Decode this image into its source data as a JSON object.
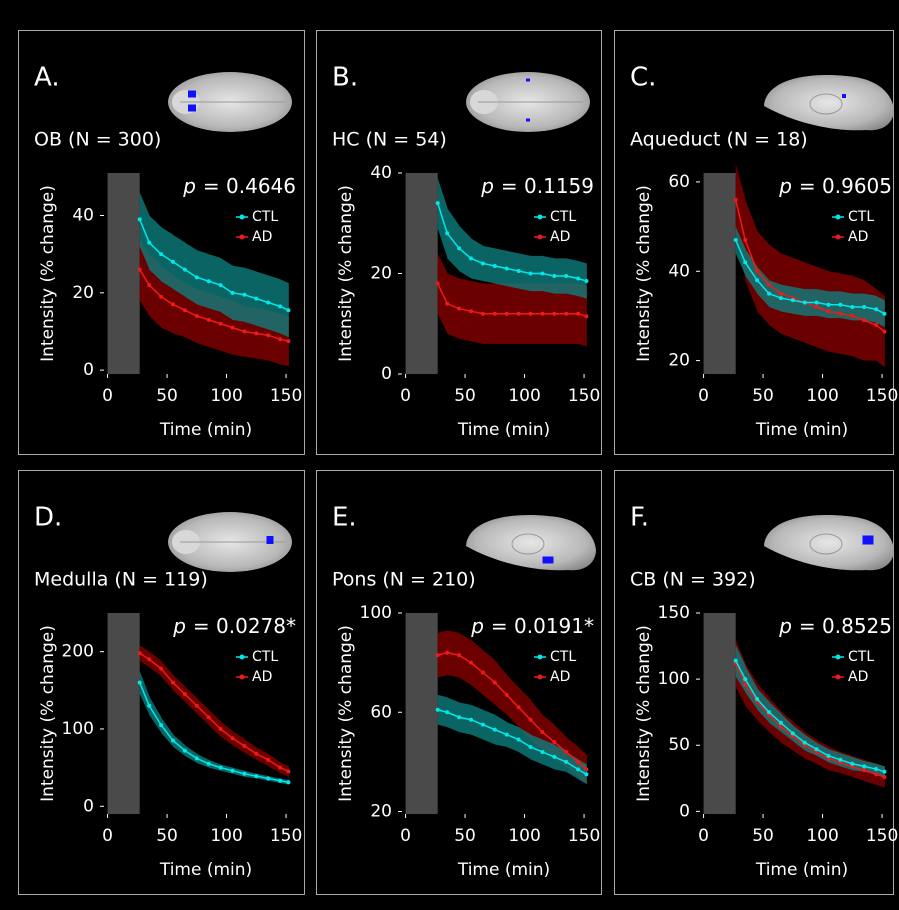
{
  "chart_data": [
    {
      "type": "line",
      "panel_label": "A.",
      "title": "OB (N = 300)",
      "p_symbol": "p",
      "p_value": "= 0.4646",
      "xlabel": "Time (min)",
      "ylabel": "Intensity (% change)",
      "xlim": [
        -3,
        155
      ],
      "ylim": [
        -1,
        51
      ],
      "xticks": [
        0,
        50,
        100,
        150
      ],
      "yticks": [
        0,
        20,
        40
      ],
      "shaded_region": [
        0,
        27
      ],
      "x": [
        27,
        35,
        45,
        55,
        65,
        75,
        85,
        95,
        105,
        115,
        125,
        135,
        145,
        152
      ],
      "series": [
        {
          "name": "CTL",
          "color": "#00e8e8",
          "band_color": "#0e8080",
          "values": [
            39,
            33,
            30,
            28,
            26,
            24,
            23,
            22,
            20,
            19.5,
            18.5,
            17.5,
            16.5,
            15.5
          ],
          "errors": [
            7,
            7,
            7,
            7,
            7,
            7,
            7,
            7,
            7,
            7,
            7,
            7,
            7,
            7
          ]
        },
        {
          "name": "AD",
          "color": "#ee1a1a",
          "band_color": "#8a0000",
          "values": [
            26,
            22,
            19,
            17,
            15.5,
            14,
            13,
            12,
            11,
            10,
            9.5,
            9,
            8,
            7.5
          ],
          "errors": [
            8,
            8,
            8,
            7.5,
            7,
            7,
            7,
            7,
            7,
            6.5,
            6.5,
            6.5,
            6.5,
            6.5
          ]
        }
      ]
    },
    {
      "type": "line",
      "panel_label": "B.",
      "title": "HC (N = 54)",
      "p_symbol": "p",
      "p_value": "= 0.1159",
      "xlabel": "Time (min)",
      "ylabel": "Intensity (% change)",
      "xlim": [
        -3,
        155
      ],
      "ylim": [
        0,
        40
      ],
      "xticks": [
        0,
        50,
        100,
        150
      ],
      "yticks": [
        0,
        20,
        40
      ],
      "shaded_region": [
        0,
        27
      ],
      "x": [
        27,
        35,
        45,
        55,
        65,
        75,
        85,
        95,
        105,
        115,
        125,
        135,
        145,
        152
      ],
      "series": [
        {
          "name": "CTL",
          "color": "#00e8e8",
          "band_color": "#0e8080",
          "values": [
            34,
            28,
            25,
            23,
            22,
            21.5,
            21,
            20.5,
            20,
            20,
            19.5,
            19.5,
            19,
            18.5
          ],
          "errors": [
            5,
            5,
            4.5,
            4,
            3.5,
            3.5,
            3.5,
            3.5,
            3.5,
            3.5,
            3.5,
            3.5,
            3.5,
            3.5
          ]
        },
        {
          "name": "AD",
          "color": "#ee1a1a",
          "band_color": "#8a0000",
          "values": [
            18,
            14,
            13,
            12.5,
            12,
            12,
            12,
            12,
            12,
            12,
            12,
            12,
            12,
            11.5
          ],
          "errors": [
            6,
            6,
            6,
            6,
            6,
            6,
            6,
            6,
            6,
            6,
            6,
            6,
            6,
            6
          ]
        }
      ]
    },
    {
      "type": "line",
      "panel_label": "C.",
      "title": "Aqueduct (N = 18)",
      "p_symbol": "p",
      "p_value": "= 0.9605",
      "xlabel": "Time (min)",
      "ylabel": "Intensity (% change)",
      "xlim": [
        -3,
        155
      ],
      "ylim": [
        17,
        62
      ],
      "xticks": [
        0,
        50,
        100,
        150
      ],
      "yticks": [
        20,
        40,
        60
      ],
      "shaded_region": [
        0,
        27
      ],
      "x": [
        27,
        35,
        45,
        55,
        65,
        75,
        85,
        95,
        105,
        115,
        125,
        135,
        145,
        152
      ],
      "series": [
        {
          "name": "CTL",
          "color": "#00e8e8",
          "band_color": "#0e8080",
          "values": [
            47,
            42,
            38,
            35,
            34,
            33.5,
            33,
            33,
            32.5,
            32.5,
            32,
            32,
            31.5,
            30.5
          ],
          "errors": [
            3,
            3,
            3,
            3,
            3,
            3,
            3,
            3,
            3,
            3,
            3,
            3,
            3,
            3
          ]
        },
        {
          "name": "AD",
          "color": "#ee1a1a",
          "band_color": "#8a0000",
          "values": [
            56,
            47,
            40,
            37,
            35,
            34,
            33,
            32,
            31,
            30.5,
            30,
            29,
            28,
            26.5
          ],
          "errors": [
            8,
            9,
            9,
            9,
            9,
            9,
            9,
            9,
            9,
            9,
            9,
            9,
            8,
            8
          ]
        }
      ]
    },
    {
      "type": "line",
      "panel_label": "D.",
      "title": "Medulla (N = 119)",
      "p_symbol": "p",
      "p_value": "= 0.0278*",
      "xlabel": "Time (min)",
      "ylabel": "Intensity (% change)",
      "xlim": [
        -3,
        155
      ],
      "ylim": [
        -10,
        250
      ],
      "xticks": [
        0,
        50,
        100,
        150
      ],
      "yticks": [
        0,
        100,
        200
      ],
      "shaded_region": [
        0,
        27
      ],
      "x": [
        27,
        35,
        45,
        55,
        65,
        75,
        85,
        95,
        105,
        115,
        125,
        135,
        145,
        152
      ],
      "series": [
        {
          "name": "CTL",
          "color": "#00e8e8",
          "band_color": "#0e8080",
          "values": [
            160,
            130,
            105,
            85,
            72,
            62,
            55,
            50,
            46,
            42,
            39,
            36,
            33,
            31
          ],
          "errors": [
            15,
            12,
            10,
            8,
            7,
            6,
            5,
            4,
            4,
            4,
            3,
            3,
            3,
            3
          ]
        },
        {
          "name": "AD",
          "color": "#ee1a1a",
          "band_color": "#8a0000",
          "values": [
            198,
            190,
            178,
            160,
            145,
            130,
            115,
            100,
            88,
            78,
            68,
            60,
            50,
            45
          ],
          "errors": [
            10,
            10,
            10,
            10,
            10,
            10,
            10,
            10,
            9,
            9,
            8,
            8,
            7,
            7
          ]
        }
      ]
    },
    {
      "type": "line",
      "panel_label": "E.",
      "title": "Pons (N = 210)",
      "p_symbol": "p",
      "p_value": "= 0.0191*",
      "xlabel": "Time (min)",
      "ylabel": "Intensity (% change)",
      "xlim": [
        -3,
        155
      ],
      "ylim": [
        19,
        100
      ],
      "xticks": [
        0,
        50,
        100,
        150
      ],
      "yticks": [
        20,
        60,
        100
      ],
      "shaded_region": [
        0,
        27
      ],
      "x": [
        27,
        35,
        45,
        55,
        65,
        75,
        85,
        95,
        105,
        115,
        125,
        135,
        145,
        152
      ],
      "series": [
        {
          "name": "CTL",
          "color": "#00e8e8",
          "band_color": "#0e8080",
          "values": [
            61,
            60,
            58,
            57,
            55,
            53,
            51,
            49,
            46,
            44,
            42,
            40,
            37,
            35
          ],
          "errors": [
            6,
            6,
            6,
            6,
            6,
            6,
            5,
            5,
            5,
            5,
            5,
            4,
            4,
            4
          ]
        },
        {
          "name": "AD",
          "color": "#ee1a1a",
          "band_color": "#8a0000",
          "values": [
            83,
            84,
            83,
            80,
            76,
            72,
            67,
            62,
            57,
            52,
            48,
            44,
            40,
            37
          ],
          "errors": [
            9,
            9,
            9,
            9,
            9,
            9,
            8,
            8,
            8,
            7,
            7,
            6,
            6,
            6
          ]
        }
      ]
    },
    {
      "type": "line",
      "panel_label": "F.",
      "title": "CB (N = 392)",
      "p_symbol": "p",
      "p_value": "= 0.8525",
      "xlabel": "Time (min)",
      "ylabel": "Intensity (% change)",
      "xlim": [
        -3,
        155
      ],
      "ylim": [
        -2,
        150
      ],
      "xticks": [
        0,
        50,
        100,
        150
      ],
      "yticks": [
        0,
        50,
        100,
        150
      ],
      "shaded_region": [
        0,
        27
      ],
      "x": [
        27,
        35,
        45,
        55,
        65,
        75,
        85,
        95,
        105,
        115,
        125,
        135,
        145,
        152
      ],
      "series": [
        {
          "name": "CTL",
          "color": "#00e8e8",
          "band_color": "#0e8080",
          "values": [
            114,
            100,
            85,
            75,
            67,
            59,
            52,
            47,
            42,
            39,
            36,
            34,
            32,
            30
          ],
          "errors": [
            12,
            10,
            8,
            8,
            7,
            6,
            6,
            5,
            5,
            5,
            5,
            4,
            4,
            4
          ]
        },
        {
          "name": "AD",
          "color": "#ee1a1a",
          "band_color": "#8a0000",
          "values": [
            112,
            96,
            83,
            73,
            64,
            57,
            50,
            45,
            40,
            37,
            34,
            31,
            28,
            26
          ],
          "errors": [
            18,
            16,
            14,
            13,
            12,
            11,
            10,
            9,
            9,
            8,
            8,
            8,
            8,
            8
          ]
        }
      ]
    }
  ]
}
